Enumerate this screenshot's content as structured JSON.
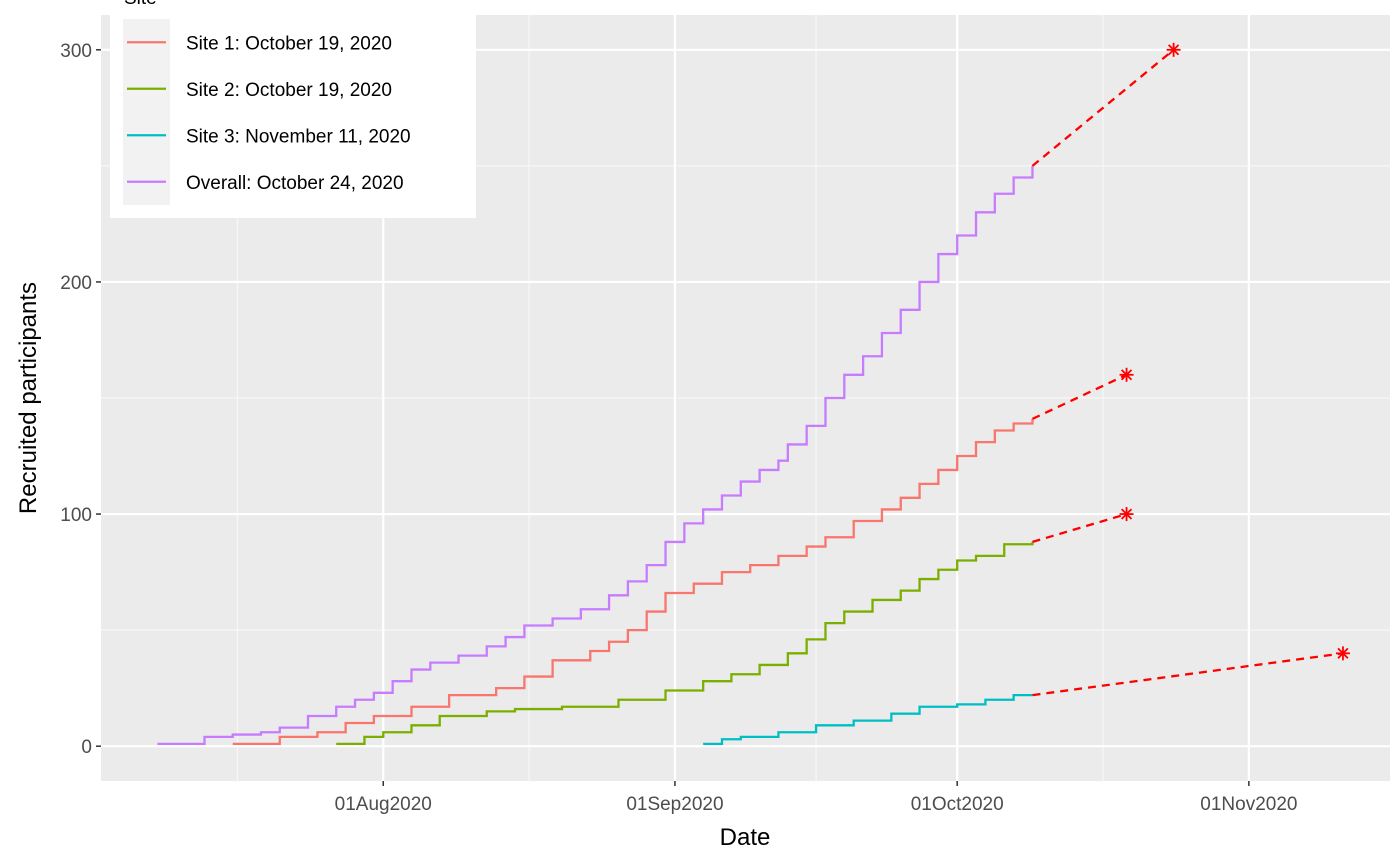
{
  "chart_data": {
    "type": "line",
    "title": "",
    "xlabel": "Date",
    "ylabel": "Recruited participants",
    "x_axis_type": "date",
    "xlim": [
      "2020-07-02",
      "2020-11-16"
    ],
    "ylim": [
      -15,
      315
    ],
    "x_ticks": [
      {
        "date": "2020-08-01",
        "label": "01Aug2020"
      },
      {
        "date": "2020-09-01",
        "label": "01Sep2020"
      },
      {
        "date": "2020-10-01",
        "label": "01Oct2020"
      },
      {
        "date": "2020-11-01",
        "label": "01Nov2020"
      }
    ],
    "y_ticks": [
      0,
      100,
      200,
      300
    ],
    "grid": true,
    "legend": {
      "title": "Site",
      "position": "top-left",
      "entries": [
        {
          "label": "Site 1: October 19, 2020",
          "color": "#F8766D"
        },
        {
          "label": "Site 2: October 19, 2020",
          "color": "#7CAE00"
        },
        {
          "label": "Site 3: November 11, 2020",
          "color": "#00BFC4"
        },
        {
          "label": "Overall: October 24, 2020",
          "color": "#C77CFF"
        }
      ]
    },
    "series": [
      {
        "name": "Site 1: October 19, 2020",
        "style": "step",
        "color": "#F8766D",
        "points": [
          [
            "2020-07-16",
            1
          ],
          [
            "2020-07-21",
            4
          ],
          [
            "2020-07-25",
            6
          ],
          [
            "2020-07-28",
            10
          ],
          [
            "2020-07-31",
            13
          ],
          [
            "2020-08-04",
            17
          ],
          [
            "2020-08-08",
            22
          ],
          [
            "2020-08-13",
            25
          ],
          [
            "2020-08-16",
            30
          ],
          [
            "2020-08-19",
            37
          ],
          [
            "2020-08-23",
            41
          ],
          [
            "2020-08-25",
            45
          ],
          [
            "2020-08-27",
            50
          ],
          [
            "2020-08-29",
            58
          ],
          [
            "2020-08-31",
            66
          ],
          [
            "2020-09-03",
            70
          ],
          [
            "2020-09-06",
            75
          ],
          [
            "2020-09-09",
            78
          ],
          [
            "2020-09-12",
            82
          ],
          [
            "2020-09-15",
            86
          ],
          [
            "2020-09-17",
            90
          ],
          [
            "2020-09-20",
            97
          ],
          [
            "2020-09-23",
            102
          ],
          [
            "2020-09-25",
            107
          ],
          [
            "2020-09-27",
            113
          ],
          [
            "2020-09-29",
            119
          ],
          [
            "2020-10-01",
            125
          ],
          [
            "2020-10-03",
            131
          ],
          [
            "2020-10-05",
            136
          ],
          [
            "2020-10-07",
            139
          ],
          [
            "2020-10-09",
            141
          ]
        ],
        "projection": {
          "from": [
            "2020-10-09",
            141
          ],
          "to": [
            "2020-10-19",
            160
          ]
        }
      },
      {
        "name": "Site 2: October 19, 2020",
        "style": "step",
        "color": "#7CAE00",
        "points": [
          [
            "2020-07-27",
            1
          ],
          [
            "2020-07-30",
            4
          ],
          [
            "2020-08-01",
            6
          ],
          [
            "2020-08-04",
            9
          ],
          [
            "2020-08-07",
            13
          ],
          [
            "2020-08-12",
            15
          ],
          [
            "2020-08-15",
            16
          ],
          [
            "2020-08-20",
            17
          ],
          [
            "2020-08-26",
            20
          ],
          [
            "2020-08-31",
            24
          ],
          [
            "2020-09-04",
            28
          ],
          [
            "2020-09-07",
            31
          ],
          [
            "2020-09-10",
            35
          ],
          [
            "2020-09-13",
            40
          ],
          [
            "2020-09-15",
            46
          ],
          [
            "2020-09-17",
            53
          ],
          [
            "2020-09-19",
            58
          ],
          [
            "2020-09-22",
            63
          ],
          [
            "2020-09-25",
            67
          ],
          [
            "2020-09-27",
            72
          ],
          [
            "2020-09-29",
            76
          ],
          [
            "2020-10-01",
            80
          ],
          [
            "2020-10-03",
            82
          ],
          [
            "2020-10-06",
            87
          ],
          [
            "2020-10-09",
            88
          ]
        ],
        "projection": {
          "from": [
            "2020-10-09",
            88
          ],
          "to": [
            "2020-10-19",
            100
          ]
        }
      },
      {
        "name": "Site 3: November 11, 2020",
        "style": "step",
        "color": "#00BFC4",
        "points": [
          [
            "2020-09-04",
            1
          ],
          [
            "2020-09-06",
            3
          ],
          [
            "2020-09-08",
            4
          ],
          [
            "2020-09-12",
            6
          ],
          [
            "2020-09-16",
            9
          ],
          [
            "2020-09-20",
            11
          ],
          [
            "2020-09-24",
            14
          ],
          [
            "2020-09-27",
            17
          ],
          [
            "2020-10-01",
            18
          ],
          [
            "2020-10-04",
            20
          ],
          [
            "2020-10-07",
            22
          ],
          [
            "2020-10-09",
            22
          ]
        ],
        "projection": {
          "from": [
            "2020-10-09",
            22
          ],
          "to": [
            "2020-11-11",
            40
          ]
        }
      },
      {
        "name": "Overall: October 24, 2020",
        "style": "step",
        "color": "#C77CFF",
        "points": [
          [
            "2020-07-08",
            1
          ],
          [
            "2020-07-13",
            4
          ],
          [
            "2020-07-16",
            5
          ],
          [
            "2020-07-19",
            6
          ],
          [
            "2020-07-21",
            8
          ],
          [
            "2020-07-24",
            13
          ],
          [
            "2020-07-27",
            17
          ],
          [
            "2020-07-29",
            20
          ],
          [
            "2020-07-31",
            23
          ],
          [
            "2020-08-02",
            28
          ],
          [
            "2020-08-04",
            33
          ],
          [
            "2020-08-06",
            36
          ],
          [
            "2020-08-09",
            39
          ],
          [
            "2020-08-12",
            43
          ],
          [
            "2020-08-14",
            47
          ],
          [
            "2020-08-16",
            52
          ],
          [
            "2020-08-19",
            55
          ],
          [
            "2020-08-22",
            59
          ],
          [
            "2020-08-25",
            65
          ],
          [
            "2020-08-27",
            71
          ],
          [
            "2020-08-29",
            78
          ],
          [
            "2020-08-31",
            88
          ],
          [
            "2020-09-02",
            96
          ],
          [
            "2020-09-04",
            102
          ],
          [
            "2020-09-06",
            108
          ],
          [
            "2020-09-08",
            114
          ],
          [
            "2020-09-10",
            119
          ],
          [
            "2020-09-12",
            123
          ],
          [
            "2020-09-13",
            130
          ],
          [
            "2020-09-15",
            138
          ],
          [
            "2020-09-17",
            150
          ],
          [
            "2020-09-19",
            160
          ],
          [
            "2020-09-21",
            168
          ],
          [
            "2020-09-23",
            178
          ],
          [
            "2020-09-25",
            188
          ],
          [
            "2020-09-27",
            200
          ],
          [
            "2020-09-29",
            212
          ],
          [
            "2020-10-01",
            220
          ],
          [
            "2020-10-03",
            230
          ],
          [
            "2020-10-05",
            238
          ],
          [
            "2020-10-07",
            245
          ],
          [
            "2020-10-09",
            250
          ]
        ],
        "projection": {
          "from": [
            "2020-10-09",
            250
          ],
          "to": [
            "2020-10-24",
            300
          ]
        }
      }
    ],
    "targets": [
      {
        "date": "2020-10-19",
        "value": 160
      },
      {
        "date": "2020-10-19",
        "value": 100
      },
      {
        "date": "2020-11-11",
        "value": 40
      },
      {
        "date": "2020-10-24",
        "value": 300
      }
    ],
    "target_color": "#FF0000"
  }
}
